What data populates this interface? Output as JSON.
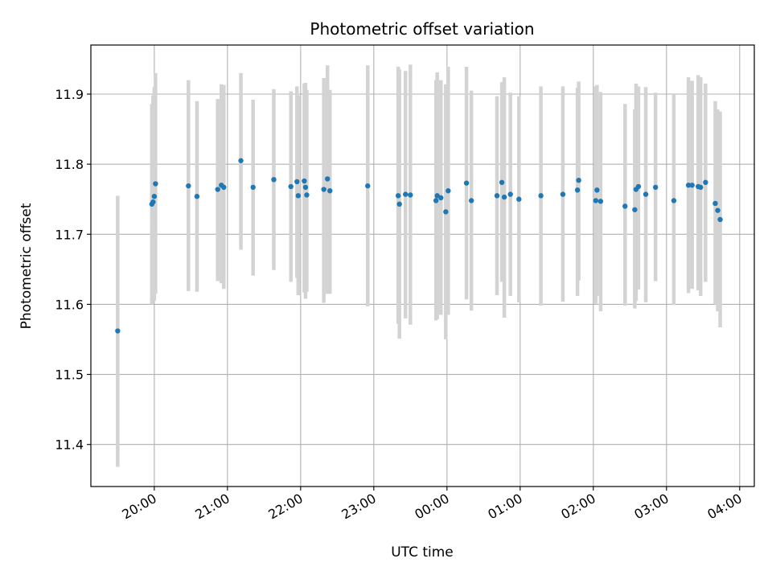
{
  "chart_data": {
    "type": "scatter",
    "title": "Photometric offset variation",
    "xlabel": "UTC time",
    "ylabel": "Photometric offset",
    "grid": true,
    "x_axis_kind": "time",
    "xlim": [
      "19:08",
      "04:12"
    ],
    "ylim": [
      11.34,
      11.97
    ],
    "yticks": [
      11.4,
      11.5,
      11.6,
      11.7,
      11.8,
      11.9
    ],
    "ytick_labels": [
      "11.4",
      "11.5",
      "11.6",
      "11.7",
      "11.8",
      "11.9"
    ],
    "xticks": [
      "20:00",
      "21:00",
      "22:00",
      "23:00",
      "00:00",
      "01:00",
      "02:00",
      "03:00",
      "04:00"
    ],
    "xtick_labels": [
      "20:00",
      "21:00",
      "22:00",
      "23:00",
      "00:00",
      "01:00",
      "02:00",
      "03:00",
      "04:00"
    ],
    "point_color": "#1f77b4",
    "errorbar_color": "#d3d3d3",
    "series": [
      {
        "x": [
          "19:30",
          "19:58",
          "19:59",
          "20:00",
          "20:01",
          "20:28",
          "20:35",
          "20:52",
          "20:55",
          "20:57",
          "21:11",
          "21:21",
          "21:38",
          "21:52",
          "21:57",
          "21:58",
          "22:03",
          "22:04",
          "22:05",
          "22:19",
          "22:22",
          "22:24",
          "22:55",
          "23:20",
          "23:21",
          "23:26",
          "23:30",
          "23:51",
          "23:52",
          "23:55",
          "23:59",
          "00:01",
          "00:16",
          "00:20",
          "00:41",
          "00:45",
          "00:47",
          "00:52",
          "00:59",
          "01:17",
          "01:35",
          "01:47",
          "01:48",
          "02:02",
          "02:03",
          "02:06",
          "02:26",
          "02:34",
          "02:35",
          "02:37",
          "02:43",
          "02:51",
          "03:06",
          "03:18",
          "03:21",
          "03:26",
          "03:28",
          "03:32",
          "03:40",
          "03:42",
          "03:44"
        ],
        "y": [
          11.562,
          11.743,
          11.746,
          11.754,
          11.772,
          11.769,
          11.754,
          11.764,
          11.77,
          11.767,
          11.805,
          11.767,
          11.778,
          11.768,
          11.775,
          11.755,
          11.776,
          11.767,
          11.756,
          11.764,
          11.779,
          11.762,
          11.769,
          11.755,
          11.743,
          11.757,
          11.756,
          11.748,
          11.755,
          11.752,
          11.732,
          11.762,
          11.773,
          11.748,
          11.755,
          11.774,
          11.753,
          11.757,
          11.75,
          11.755,
          11.757,
          11.763,
          11.777,
          11.748,
          11.763,
          11.747,
          11.74,
          11.735,
          11.764,
          11.768,
          11.757,
          11.767,
          11.748,
          11.77,
          11.77,
          11.768,
          11.767,
          11.774,
          11.744,
          11.734,
          11.721
        ],
        "err_low": [
          11.368,
          11.6,
          11.61,
          11.605,
          11.615,
          11.619,
          11.618,
          11.633,
          11.63,
          11.622,
          11.678,
          11.641,
          11.649,
          11.632,
          11.638,
          11.613,
          11.617,
          11.608,
          11.618,
          11.602,
          11.615,
          11.615,
          11.597,
          11.572,
          11.551,
          11.58,
          11.571,
          11.577,
          11.579,
          11.585,
          11.55,
          11.585,
          11.607,
          11.591,
          11.613,
          11.632,
          11.581,
          11.612,
          11.603,
          11.598,
          11.604,
          11.612,
          11.634,
          11.601,
          11.612,
          11.59,
          11.598,
          11.594,
          11.605,
          11.621,
          11.603,
          11.633,
          11.599,
          11.616,
          11.622,
          11.62,
          11.612,
          11.632,
          11.6,
          11.59,
          11.567
        ],
        "err_high": [
          11.755,
          11.886,
          11.898,
          11.91,
          11.93,
          11.92,
          11.89,
          11.893,
          11.914,
          11.913,
          11.93,
          11.892,
          11.907,
          11.904,
          11.911,
          11.898,
          11.915,
          11.916,
          11.906,
          11.923,
          11.941,
          11.906,
          11.941,
          11.939,
          11.935,
          11.933,
          11.942,
          11.92,
          11.931,
          11.92,
          11.914,
          11.939,
          11.939,
          11.905,
          11.897,
          11.917,
          11.924,
          11.902,
          11.897,
          11.911,
          11.911,
          11.909,
          11.918,
          11.911,
          11.913,
          11.903,
          11.886,
          11.878,
          11.915,
          11.911,
          11.91,
          11.902,
          11.9,
          11.924,
          11.919,
          11.927,
          11.924,
          11.915,
          11.89,
          11.878,
          11.875
        ]
      }
    ]
  }
}
